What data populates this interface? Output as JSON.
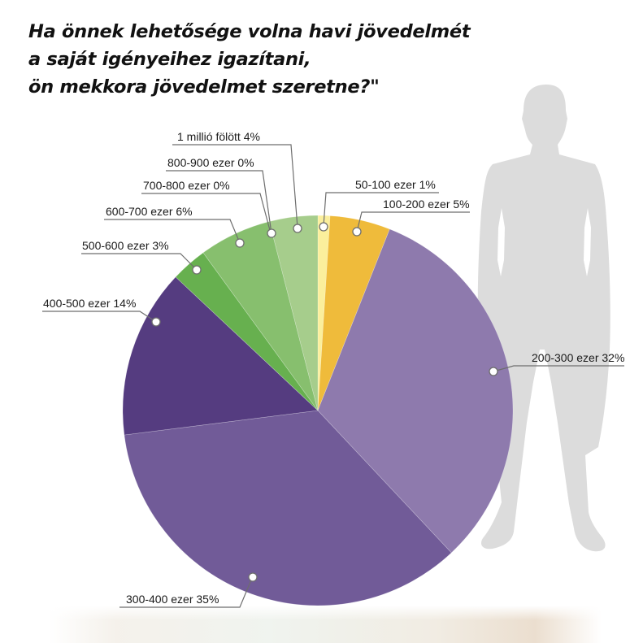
{
  "title": {
    "lines": [
      "Ha önnek lehetősége volna havi jövedelmét",
      "a saját igényeihez igazítani,",
      "ön mekkora jövedelmet szeretne?\""
    ]
  },
  "chart_data": {
    "type": "pie",
    "title": "Ha önnek lehetősége volna havi jövedelmét a saját igényeihez igazítani, ön mekkora jövedelmet szeretne?\"",
    "start_angle": "12 o'clock, clockwise",
    "categories": [
      "50-100 ezer",
      "100-200 ezer",
      "200-300 ezer",
      "300-400 ezer",
      "400-500 ezer",
      "500-600 ezer",
      "600-700 ezer",
      "700-800 ezer",
      "800-900 ezer",
      "1 millió fölött"
    ],
    "values": [
      1,
      5,
      32,
      35,
      14,
      3,
      6,
      0,
      0,
      4
    ],
    "unit": "%",
    "colors": [
      "#fbef9c",
      "#efbb3b",
      "#8e7aad",
      "#715b98",
      "#553c80",
      "#67b04f",
      "#87bf6e",
      "#87bf6e",
      "#87bf6e",
      "#a6cd8c"
    ],
    "labels": [
      "50-100 ezer 1%",
      "100-200 ezer 5%",
      "200-300 ezer 32%",
      "300-400 ezer 35%",
      "400-500 ezer 14%",
      "500-600 ezer 3%",
      "600-700 ezer 6%",
      "700-800 ezer 0%",
      "800-900 ezer  0%",
      "1 millió fölött 4%"
    ],
    "legend_position": "callout labels with leader lines"
  },
  "decor": {
    "silhouette_color": "#dcdcdc",
    "leader_color": "#6e6e6e"
  }
}
